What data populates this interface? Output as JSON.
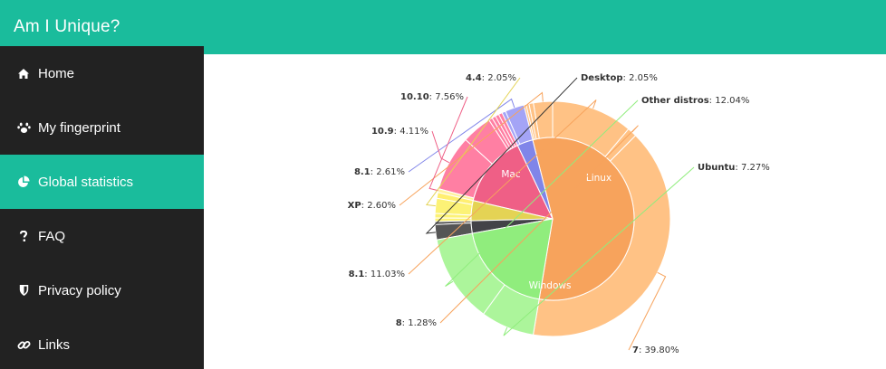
{
  "app": {
    "title": "Am I Unique?"
  },
  "sidebar": {
    "items": [
      {
        "label": "Home",
        "icon": "home-icon",
        "active": false
      },
      {
        "label": "My fingerprint",
        "icon": "paw-icon",
        "active": false
      },
      {
        "label": "Global statistics",
        "icon": "pie-chart-icon",
        "active": true
      },
      {
        "label": "FAQ",
        "icon": "question-icon",
        "active": false
      },
      {
        "label": "Privacy policy",
        "icon": "shield-icon",
        "active": false
      },
      {
        "label": "Links",
        "icon": "link-icon",
        "active": false
      }
    ]
  },
  "colors": {
    "accent": "#1abc9c",
    "sidebar_bg": "#222222"
  },
  "chart_data": {
    "type": "pie",
    "inner": [
      {
        "name": "Windows",
        "color": "#f7a35c"
      },
      {
        "name": "Mac",
        "color": "#ef5f86"
      },
      {
        "name": "Linux",
        "color": "#90ed7d"
      }
    ],
    "outer": [
      {
        "os": "Windows",
        "label": "7",
        "value": 39.8,
        "color": "#ffc285"
      },
      {
        "os": "Windows",
        "label": "8",
        "value": 1.28,
        "color": "#ffc285"
      },
      {
        "os": "Windows",
        "label": "8.1",
        "value": 11.03,
        "color": "#ffc285"
      },
      {
        "os": "Windows",
        "label": "XP",
        "value": 2.6,
        "color": "#ffc285"
      },
      {
        "os": "Windows",
        "label": "",
        "value": 0.6,
        "color": "#ffc285"
      },
      {
        "os": "Windows",
        "label": "",
        "value": 0.4,
        "color": "#ffc285"
      },
      {
        "os": "Windows",
        "label": "",
        "value": 0.3,
        "color": "#ffc285"
      },
      {
        "os": "Other",
        "label": "8.1",
        "value": 2.61,
        "color": "#a4a4f6"
      },
      {
        "os": "Other",
        "label": "",
        "value": 0.5,
        "color": "#a4a4f6"
      },
      {
        "os": "Mac",
        "label": "",
        "value": 0.5,
        "color": "#ff7fa3"
      },
      {
        "os": "Mac",
        "label": "",
        "value": 0.5,
        "color": "#ff7fa3"
      },
      {
        "os": "Mac",
        "label": "",
        "value": 0.5,
        "color": "#ff7fa3"
      },
      {
        "os": "Mac",
        "label": "",
        "value": 0.5,
        "color": "#ff7fa3"
      },
      {
        "os": "Mac",
        "label": "10.9",
        "value": 4.11,
        "color": "#ff7fa3"
      },
      {
        "os": "Mac",
        "label": "10.10",
        "value": 7.56,
        "color": "#ff7fa3"
      },
      {
        "os": "Other",
        "label": "",
        "value": 0.5,
        "color": "#fff3a0"
      },
      {
        "os": "Other",
        "label": "",
        "value": 0.8,
        "color": "#ffef70"
      },
      {
        "os": "Other",
        "label": "4.4",
        "value": 2.05,
        "color": "#fcf276"
      },
      {
        "os": "Other",
        "label": "",
        "value": 0.6,
        "color": "#fcf276"
      },
      {
        "os": "Other",
        "label": "",
        "value": 0.5,
        "color": "#fcf276"
      },
      {
        "os": "Other",
        "label": "",
        "value": 0.4,
        "color": "#555555"
      },
      {
        "os": "Other",
        "label": "Desktop",
        "value": 2.05,
        "color": "#555555"
      },
      {
        "os": "Linux",
        "label": "Other distros",
        "value": 12.04,
        "color": "#acf59b"
      },
      {
        "os": "Linux",
        "label": "Ubuntu",
        "value": 7.27,
        "color": "#acf59b"
      }
    ],
    "labels": [
      {
        "key": "Desktop",
        "value": "2.05%",
        "color": "#333333"
      },
      {
        "key": "Other distros",
        "value": "12.04%",
        "color": "#90ed7d"
      },
      {
        "key": "Ubuntu",
        "value": "7.27%",
        "color": "#90ed7d"
      },
      {
        "key": "7",
        "value": "39.80%",
        "color": "#f7a35c"
      },
      {
        "key": "8",
        "value": "1.28%",
        "color": "#f7a35c"
      },
      {
        "key": "8.1",
        "value": "11.03%",
        "color": "#f7a35c"
      },
      {
        "key": "XP",
        "value": "2.60%",
        "color": "#f7a35c"
      },
      {
        "key": "8.1",
        "value": "2.61%",
        "color": "#8085e9"
      },
      {
        "key": "10.9",
        "value": "4.11%",
        "color": "#ef5f86"
      },
      {
        "key": "10.10",
        "value": "7.56%",
        "color": "#ef5f86"
      },
      {
        "key": "4.4",
        "value": "2.05%",
        "color": "#e4d354"
      }
    ]
  }
}
